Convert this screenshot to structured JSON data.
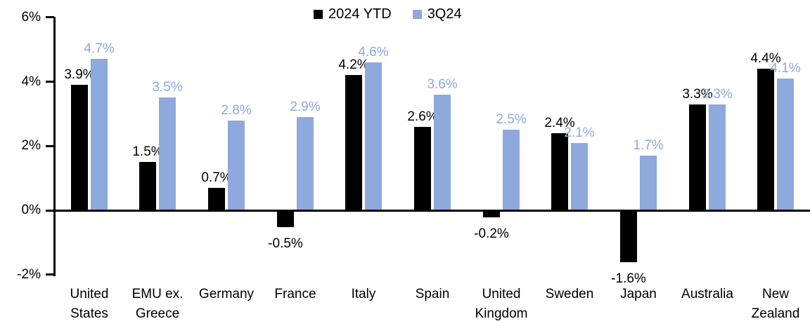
{
  "chart_data": {
    "type": "bar",
    "title": "",
    "xlabel": "",
    "ylabel": "",
    "categories": [
      "United\nStates",
      "EMU ex.\nGreece",
      "Germany",
      "France",
      "Italy",
      "Spain",
      "United\nKingdom",
      "Sweden",
      "Japan",
      "Australia",
      "New\nZealand"
    ],
    "series": [
      {
        "name": "2024 YTD",
        "color": "#000000",
        "label_color": "#000000",
        "values": [
          3.9,
          1.5,
          0.7,
          -0.5,
          4.2,
          2.6,
          -0.2,
          2.4,
          -1.6,
          3.3,
          4.4
        ],
        "labels": [
          "3.9%",
          "1.5%",
          "0.7%",
          "-0.5%",
          "4.2%",
          "2.6%",
          "-0.2%",
          "2.4%",
          "-1.6%",
          "3.3%",
          "4.4%"
        ]
      },
      {
        "name": "3Q24",
        "color": "#8EA9DB",
        "label_color": "#8EA9DB",
        "values": [
          4.7,
          3.5,
          2.8,
          2.9,
          4.6,
          3.6,
          2.5,
          2.1,
          1.7,
          3.3,
          4.1
        ],
        "labels": [
          "4.7%",
          "3.5%",
          "2.8%",
          "2.9%",
          "4.6%",
          "3.6%",
          "2.5%",
          "2.1%",
          "1.7%",
          "3.3%",
          "4.1%"
        ]
      }
    ],
    "ylim": [
      -2,
      6
    ],
    "yticks": [
      6,
      4,
      2,
      0,
      -2
    ],
    "ytick_labels": [
      "6%",
      "4%",
      "2%",
      "0%",
      "-2%"
    ],
    "grid": false,
    "legend_position": "top-center",
    "axis_color": "#000000",
    "background_color": "#FFFFFF"
  }
}
